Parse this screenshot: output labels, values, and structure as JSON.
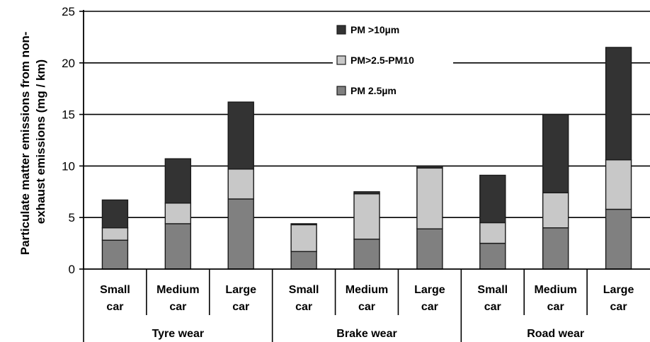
{
  "chart_data": {
    "type": "bar",
    "stacked": true,
    "ylabel_lines": [
      "Particulate matter emissions from non-",
      "exhaust emissions (mg / km)"
    ],
    "ylim": [
      0,
      25
    ],
    "yticks": [
      0,
      5,
      10,
      15,
      20,
      25
    ],
    "grid": true,
    "legend_position": "top-center",
    "categories": [
      {
        "line1": "Small",
        "line2": "car"
      },
      {
        "line1": "Medium",
        "line2": "car"
      },
      {
        "line1": "Large",
        "line2": "car"
      },
      {
        "line1": "Small",
        "line2": "car"
      },
      {
        "line1": "Medium",
        "line2": "car"
      },
      {
        "line1": "Large",
        "line2": "car"
      },
      {
        "line1": "Small",
        "line2": "car"
      },
      {
        "line1": "Medium",
        "line2": "car"
      },
      {
        "line1": "Large",
        "line2": "car"
      }
    ],
    "groups": [
      {
        "label": "Tyre wear",
        "span": 3
      },
      {
        "label": "Brake wear",
        "span": 3
      },
      {
        "label": "Road wear",
        "span": 3
      }
    ],
    "series": [
      {
        "name": "PM 2.5µm",
        "color": "#808080",
        "values": [
          2.8,
          4.4,
          6.8,
          1.7,
          2.9,
          3.9,
          2.5,
          4.0,
          5.8
        ]
      },
      {
        "name": "PM>2.5-PM10",
        "color": "#c8c8c8",
        "values": [
          1.2,
          2.0,
          2.9,
          2.6,
          4.4,
          5.9,
          2.0,
          3.4,
          4.8
        ]
      },
      {
        "name": "PM >10µm",
        "color": "#333333",
        "values": [
          2.7,
          4.3,
          6.5,
          0.1,
          0.2,
          0.2,
          4.6,
          7.6,
          10.9
        ]
      }
    ],
    "legend_order": [
      "PM >10µm",
      "PM>2.5-PM10",
      "PM 2.5µm"
    ]
  }
}
